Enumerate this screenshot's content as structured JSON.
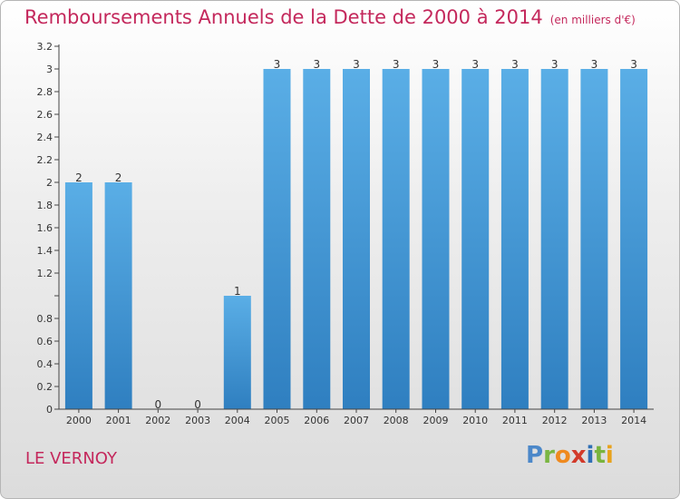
{
  "header": {
    "title": "Remboursements Annuels de la Dette de 2000 à 2014",
    "unit": "(en milliers d'€)"
  },
  "footer": {
    "commune": "LE VERNOY",
    "logo_text": "Proxiti"
  },
  "colors": {
    "title": "#c4285c",
    "bar_light": "#5aaee6",
    "bar_dark": "#2f7fc0",
    "axis": "#444444",
    "logo": [
      "#4c88c9",
      "#7ab642",
      "#ef8a1f",
      "#d23a2a",
      "#2f6fb5",
      "#79b43e",
      "#e8a21c"
    ]
  },
  "chart_data": {
    "type": "bar",
    "title": "Remboursements Annuels de la Dette de 2000 à 2014",
    "xlabel": "",
    "ylabel": "",
    "categories": [
      "2000",
      "2001",
      "2002",
      "2003",
      "2004",
      "2005",
      "2006",
      "2007",
      "2008",
      "2009",
      "2010",
      "2011",
      "2012",
      "2013",
      "2014"
    ],
    "values": [
      2,
      2,
      0,
      0,
      1,
      3,
      3,
      3,
      3,
      3,
      3,
      3,
      3,
      3,
      3
    ],
    "data_labels": [
      "2",
      "2",
      "0",
      "0",
      "1",
      "3",
      "3",
      "3",
      "3",
      "3",
      "3",
      "3",
      "3",
      "3",
      "3"
    ],
    "ylim": [
      0,
      3.2
    ],
    "yticks": [
      0,
      0.2,
      0.4,
      0.6,
      0.8,
      1,
      1.2,
      1.4,
      1.6,
      1.8,
      2,
      2.2,
      2.4,
      2.6,
      2.8,
      3,
      3.2
    ],
    "ytick_labels": [
      "0",
      "0.2",
      "0.4",
      "0.6",
      "0.8",
      "",
      "1.2",
      "1.4",
      "1.6",
      "1.8",
      "2",
      "2.2",
      "2.4",
      "2.6",
      "2.8",
      "3",
      "3.2"
    ],
    "grid": false,
    "legend": "none"
  }
}
